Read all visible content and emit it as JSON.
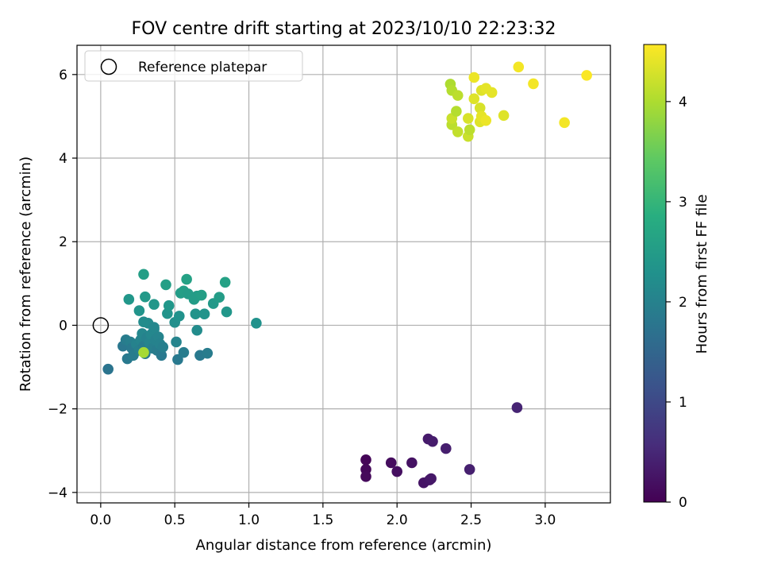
{
  "chart_data": {
    "type": "scatter",
    "title": "FOV centre drift starting at 2023/10/10 22:23:32",
    "xlabel": "Angular distance from reference (arcmin)",
    "ylabel": "Rotation from reference (arcmin)",
    "xlim": [
      -0.16,
      3.44
    ],
    "ylim": [
      -4.25,
      6.7
    ],
    "x_ticks": [
      0.0,
      0.5,
      1.0,
      1.5,
      2.0,
      2.5,
      3.0
    ],
    "x_tick_labels": [
      "0.0",
      "0.5",
      "1.0",
      "1.5",
      "2.0",
      "2.5",
      "3.0"
    ],
    "y_ticks": [
      -4,
      -2,
      0,
      2,
      4,
      6
    ],
    "y_tick_labels": [
      "−4",
      "−2",
      "0",
      "2",
      "4",
      "6"
    ],
    "grid": true,
    "legend": {
      "position": "top-left",
      "entries": [
        "Reference platepar"
      ]
    },
    "reference_point": {
      "x": 0.0,
      "y": 0.0
    },
    "colorbar": {
      "label": "Hours from first FF file",
      "colormap": "viridis",
      "range": [
        0,
        4.57
      ],
      "ticks": [
        0,
        1,
        2,
        3,
        4
      ],
      "tick_labels": [
        "0",
        "1",
        "2",
        "3",
        "4"
      ]
    },
    "points": [
      {
        "x": 1.79,
        "y": -3.22,
        "h": 0.05
      },
      {
        "x": 1.79,
        "y": -3.45,
        "h": 0.08
      },
      {
        "x": 1.79,
        "y": -3.62,
        "h": 0.1
      },
      {
        "x": 1.96,
        "y": -3.29,
        "h": 0.15
      },
      {
        "x": 2.0,
        "y": -3.5,
        "h": 0.18
      },
      {
        "x": 2.1,
        "y": -3.29,
        "h": 0.22
      },
      {
        "x": 2.18,
        "y": -3.77,
        "h": 0.25
      },
      {
        "x": 2.22,
        "y": -3.7,
        "h": 0.27
      },
      {
        "x": 2.23,
        "y": -3.67,
        "h": 0.3
      },
      {
        "x": 2.21,
        "y": -2.72,
        "h": 0.33
      },
      {
        "x": 2.24,
        "y": -2.78,
        "h": 0.35
      },
      {
        "x": 2.33,
        "y": -2.95,
        "h": 0.38
      },
      {
        "x": 2.49,
        "y": -3.45,
        "h": 0.4
      },
      {
        "x": 2.81,
        "y": -1.97,
        "h": 0.45
      },
      {
        "x": 0.05,
        "y": -1.05,
        "h": 1.75
      },
      {
        "x": 0.15,
        "y": -0.5,
        "h": 1.8
      },
      {
        "x": 0.18,
        "y": -0.8,
        "h": 1.85
      },
      {
        "x": 0.17,
        "y": -0.35,
        "h": 1.9
      },
      {
        "x": 0.2,
        "y": -0.4,
        "h": 1.95
      },
      {
        "x": 0.21,
        "y": -0.55,
        "h": 1.85
      },
      {
        "x": 0.22,
        "y": -0.72,
        "h": 1.9
      },
      {
        "x": 0.24,
        "y": -0.45,
        "h": 2.0
      },
      {
        "x": 0.26,
        "y": -0.6,
        "h": 1.95
      },
      {
        "x": 0.27,
        "y": -0.35,
        "h": 2.05
      },
      {
        "x": 0.28,
        "y": -0.2,
        "h": 2.1
      },
      {
        "x": 0.29,
        "y": -0.5,
        "h": 1.9
      },
      {
        "x": 0.3,
        "y": -0.68,
        "h": 1.85
      },
      {
        "x": 0.31,
        "y": -0.3,
        "h": 2.0
      },
      {
        "x": 0.33,
        "y": -0.42,
        "h": 2.05
      },
      {
        "x": 0.34,
        "y": -0.22,
        "h": 2.1
      },
      {
        "x": 0.35,
        "y": -0.55,
        "h": 1.95
      },
      {
        "x": 0.36,
        "y": -0.1,
        "h": 2.1
      },
      {
        "x": 0.37,
        "y": -0.35,
        "h": 2.0
      },
      {
        "x": 0.38,
        "y": -0.6,
        "h": 1.9
      },
      {
        "x": 0.39,
        "y": -0.28,
        "h": 2.05
      },
      {
        "x": 0.4,
        "y": -0.45,
        "h": 2.0
      },
      {
        "x": 0.41,
        "y": -0.72,
        "h": 1.85
      },
      {
        "x": 0.42,
        "y": -0.52,
        "h": 1.95
      },
      {
        "x": 0.32,
        "y": 0.05,
        "h": 2.15
      },
      {
        "x": 0.29,
        "y": 0.08,
        "h": 2.2
      },
      {
        "x": 0.36,
        "y": -0.05,
        "h": 2.1
      },
      {
        "x": 0.19,
        "y": 0.62,
        "h": 2.4
      },
      {
        "x": 0.26,
        "y": 0.35,
        "h": 2.35
      },
      {
        "x": 0.3,
        "y": 0.68,
        "h": 2.45
      },
      {
        "x": 0.29,
        "y": 1.22,
        "h": 2.55
      },
      {
        "x": 0.36,
        "y": 0.5,
        "h": 2.4
      },
      {
        "x": 0.44,
        "y": 0.97,
        "h": 2.55
      },
      {
        "x": 0.45,
        "y": 0.28,
        "h": 2.35
      },
      {
        "x": 0.46,
        "y": 0.47,
        "h": 2.4
      },
      {
        "x": 0.5,
        "y": 0.07,
        "h": 2.25
      },
      {
        "x": 0.51,
        "y": -0.4,
        "h": 2.05
      },
      {
        "x": 0.52,
        "y": -0.82,
        "h": 1.85
      },
      {
        "x": 0.53,
        "y": 0.22,
        "h": 2.3
      },
      {
        "x": 0.54,
        "y": 0.77,
        "h": 2.5
      },
      {
        "x": 0.56,
        "y": 0.82,
        "h": 2.55
      },
      {
        "x": 0.56,
        "y": -0.65,
        "h": 1.9
      },
      {
        "x": 0.58,
        "y": 1.1,
        "h": 2.6
      },
      {
        "x": 0.59,
        "y": 0.75,
        "h": 2.5
      },
      {
        "x": 0.63,
        "y": 0.62,
        "h": 2.5
      },
      {
        "x": 0.64,
        "y": 0.27,
        "h": 2.35
      },
      {
        "x": 0.65,
        "y": -0.12,
        "h": 2.2
      },
      {
        "x": 0.65,
        "y": 0.7,
        "h": 2.5
      },
      {
        "x": 0.68,
        "y": 0.72,
        "h": 2.55
      },
      {
        "x": 0.67,
        "y": -0.72,
        "h": 1.85
      },
      {
        "x": 0.7,
        "y": 0.27,
        "h": 2.35
      },
      {
        "x": 0.72,
        "y": -0.67,
        "h": 1.9
      },
      {
        "x": 0.76,
        "y": 0.52,
        "h": 2.45
      },
      {
        "x": 0.8,
        "y": 0.67,
        "h": 2.5
      },
      {
        "x": 0.84,
        "y": 1.03,
        "h": 2.6
      },
      {
        "x": 0.85,
        "y": 0.32,
        "h": 2.4
      },
      {
        "x": 1.05,
        "y": 0.05,
        "h": 2.3
      },
      {
        "x": 0.29,
        "y": -0.65,
        "h": 3.95
      },
      {
        "x": 2.36,
        "y": 5.77,
        "h": 4.0
      },
      {
        "x": 2.37,
        "y": 5.62,
        "h": 4.05
      },
      {
        "x": 2.37,
        "y": 4.8,
        "h": 4.1
      },
      {
        "x": 2.37,
        "y": 4.95,
        "h": 4.2
      },
      {
        "x": 2.4,
        "y": 5.12,
        "h": 4.05
      },
      {
        "x": 2.41,
        "y": 5.5,
        "h": 4.1
      },
      {
        "x": 2.41,
        "y": 4.63,
        "h": 4.15
      },
      {
        "x": 2.48,
        "y": 4.52,
        "h": 4.2
      },
      {
        "x": 2.49,
        "y": 4.68,
        "h": 4.1
      },
      {
        "x": 2.48,
        "y": 4.95,
        "h": 4.3
      },
      {
        "x": 2.52,
        "y": 5.42,
        "h": 4.35
      },
      {
        "x": 2.52,
        "y": 5.93,
        "h": 4.45
      },
      {
        "x": 2.56,
        "y": 5.2,
        "h": 4.3
      },
      {
        "x": 2.56,
        "y": 4.87,
        "h": 4.35
      },
      {
        "x": 2.57,
        "y": 5.0,
        "h": 4.4
      },
      {
        "x": 2.57,
        "y": 5.62,
        "h": 4.35
      },
      {
        "x": 2.6,
        "y": 5.67,
        "h": 4.4
      },
      {
        "x": 2.6,
        "y": 4.9,
        "h": 4.45
      },
      {
        "x": 2.64,
        "y": 5.57,
        "h": 4.4
      },
      {
        "x": 2.72,
        "y": 5.02,
        "h": 4.35
      },
      {
        "x": 2.82,
        "y": 6.18,
        "h": 4.5
      },
      {
        "x": 2.92,
        "y": 5.78,
        "h": 4.5
      },
      {
        "x": 3.13,
        "y": 4.85,
        "h": 4.5
      },
      {
        "x": 3.28,
        "y": 5.98,
        "h": 4.55
      }
    ]
  }
}
